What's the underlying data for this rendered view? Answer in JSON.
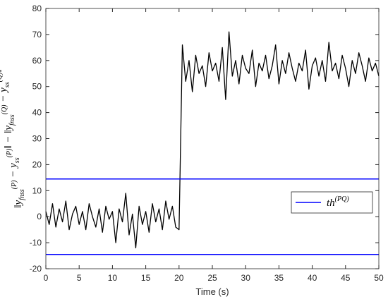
{
  "chart_data": {
    "type": "line",
    "xlabel": "Time (s)",
    "ylabel_parts": [
      {
        "text": "‖y",
        "sub": "fnss",
        "sup": "(P)"
      },
      {
        "text": " − y",
        "sub": "ss",
        "sup": "(P)"
      },
      {
        "text": "‖ − ‖y",
        "sub": "fnss",
        "sup": "(Q)"
      },
      {
        "text": " − y",
        "sub": "ss",
        "sup": "(Q)"
      },
      {
        "text": "‖"
      }
    ],
    "xlim": [
      0,
      50
    ],
    "ylim": [
      -20,
      80
    ],
    "xticks": [
      0,
      5,
      10,
      15,
      20,
      25,
      30,
      35,
      40,
      45,
      50
    ],
    "yticks": [
      -20,
      -10,
      0,
      10,
      20,
      30,
      40,
      50,
      60,
      70,
      80
    ],
    "x": [
      0,
      0.5,
      1,
      1.5,
      2,
      2.5,
      3,
      3.5,
      4,
      4.5,
      5,
      5.5,
      6,
      6.5,
      7,
      7.5,
      8,
      8.5,
      9,
      9.5,
      10,
      10.5,
      11,
      11.5,
      12,
      12.5,
      13,
      13.5,
      14,
      14.5,
      15,
      15.5,
      16,
      16.5,
      17,
      17.5,
      18,
      18.5,
      19,
      19.5,
      20,
      20.5,
      21,
      21.5,
      22,
      22.5,
      23,
      23.5,
      24,
      24.5,
      25,
      25.5,
      26,
      26.5,
      27,
      27.5,
      28,
      28.5,
      29,
      29.5,
      30,
      30.5,
      31,
      31.5,
      32,
      32.5,
      33,
      33.5,
      34,
      34.5,
      35,
      35.5,
      36,
      36.5,
      37,
      37.5,
      38,
      38.5,
      39,
      39.5,
      40,
      40.5,
      41,
      41.5,
      42,
      42.5,
      43,
      43.5,
      44,
      44.5,
      45,
      45.5,
      46,
      46.5,
      47,
      47.5,
      48,
      48.5,
      49,
      49.5,
      50
    ],
    "series": [
      {
        "color": "#000000",
        "values": [
          2,
          -3,
          5,
          -4,
          3,
          -2,
          6,
          -5,
          1,
          4,
          -3,
          2,
          -5,
          5,
          0,
          -4,
          3,
          -6,
          4,
          -1,
          2,
          -10,
          3,
          -2,
          9,
          -7,
          1,
          -12,
          4,
          -3,
          2,
          -6,
          5,
          -2,
          3,
          -5,
          6,
          -1,
          4,
          -4,
          -5,
          66,
          52,
          60,
          48,
          62,
          55,
          58,
          50,
          63,
          56,
          59,
          52,
          65,
          45,
          71,
          54,
          60,
          51,
          62,
          57,
          55,
          64,
          50,
          59,
          56,
          62,
          53,
          58,
          66,
          51,
          60,
          55,
          63,
          57,
          52,
          59,
          56,
          64,
          49,
          58,
          61,
          54,
          60,
          52,
          67,
          56,
          59,
          53,
          62,
          57,
          50,
          60,
          55,
          63,
          58,
          52,
          61,
          56,
          59,
          54
        ]
      }
    ],
    "thresholds": {
      "name": "th",
      "name_superscript": "(PQ)",
      "color": "#0000ff",
      "values": [
        14.5,
        -14.5
      ]
    }
  }
}
